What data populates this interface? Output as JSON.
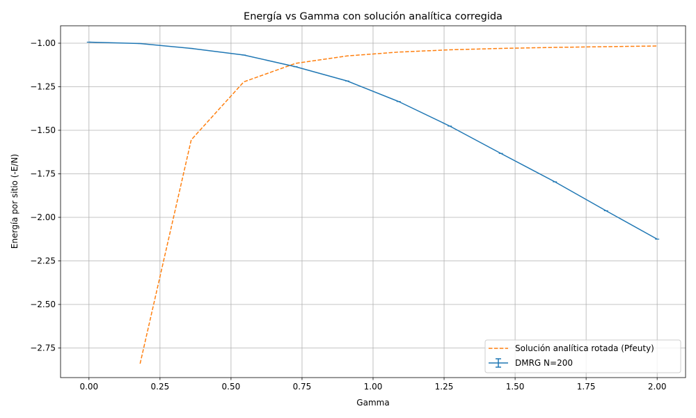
{
  "chart_data": {
    "type": "line",
    "title": "Energía vs Gamma con solución analítica corregida",
    "xlabel": "Gamma",
    "ylabel": "Energía por sitio (-E/N)",
    "xlim": [
      -0.1,
      2.1
    ],
    "ylim": [
      -2.92,
      -0.9
    ],
    "grid": true,
    "legend_position": "lower-right",
    "x_ticks": [
      "0.00",
      "0.25",
      "0.50",
      "0.75",
      "1.00",
      "1.25",
      "1.50",
      "1.75",
      "2.00"
    ],
    "y_ticks": [
      "−1.00",
      "−1.25",
      "−1.50",
      "−1.75",
      "−2.00",
      "−2.25",
      "−2.50",
      "−2.75"
    ],
    "series": [
      {
        "name": "Solución analítica rotada (Pfeuty)",
        "style": "dashed",
        "color": "#ff7f0e",
        "x": [
          0.18,
          0.36,
          0.545,
          0.727,
          0.909,
          1.09,
          1.27,
          1.45,
          1.64,
          1.82,
          2.0
        ],
        "y": [
          -2.84,
          -1.555,
          -1.222,
          -1.116,
          -1.073,
          -1.051,
          -1.038,
          -1.03,
          -1.024,
          -1.02,
          -1.016
        ]
      },
      {
        "name": "DMRG N=200",
        "style": "solid-errorbar",
        "color": "#1f77b4",
        "x": [
          0.0,
          0.18,
          0.36,
          0.545,
          0.727,
          0.909,
          1.09,
          1.27,
          1.45,
          1.64,
          1.82,
          2.0
        ],
        "y": [
          -0.994,
          -1.002,
          -1.03,
          -1.068,
          -1.135,
          -1.217,
          -1.335,
          -1.476,
          -1.633,
          -1.796,
          -1.962,
          -2.125
        ]
      }
    ]
  }
}
